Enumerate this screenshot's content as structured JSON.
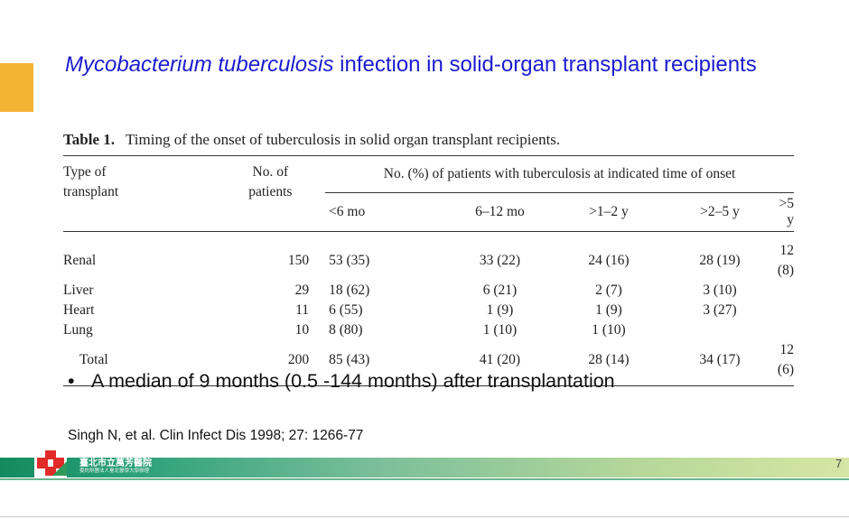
{
  "slide": {
    "title_italic": "Mycobacterium tuberculosis",
    "title_rest": " infection in solid-organ transplant recipients",
    "bullet": "A median of 9 months (0.5 -144 months) after transplantation",
    "reference": "Singh N, et al. Clin Infect Dis 1998; 27: 1266-77",
    "page_number": "7",
    "accent_color": "#f5b335",
    "title_color": "#1c1ccf"
  },
  "table": {
    "label": "Table 1.",
    "caption": "Timing of the onset of tuberculosis in solid organ transplant recipients.",
    "spanner": "No. (%) of patients with tuberculosis at indicated time of onset",
    "col_type_1": "Type of",
    "col_type_2": "transplant",
    "col_n_1": "No. of",
    "col_n_2": "patients",
    "onset_headers": [
      "<6 mo",
      "6–12 mo",
      ">1–2 y",
      ">2–5 y",
      ">5 y"
    ],
    "rows": [
      {
        "type": "Renal",
        "n": "150",
        "c1": "53 (35)",
        "c2": "33 (22)",
        "c3": "24 (16)",
        "c4": "28 (19)",
        "c5": "12 (8)"
      },
      {
        "type": "Liver",
        "n": "29",
        "c1": "18 (62)",
        "c2": "6 (21)",
        "c3": "2 (7)",
        "c4": "3 (10)",
        "c5": ""
      },
      {
        "type": "Heart",
        "n": "11",
        "c1": "6 (55)",
        "c2": "1 (9)",
        "c3": "1 (9)",
        "c4": "3 (27)",
        "c5": ""
      },
      {
        "type": "Lung",
        "n": "10",
        "c1": "8 (80)",
        "c2": "1 (10)",
        "c3": "1 (10)",
        "c4": "",
        "c5": ""
      },
      {
        "type": "Total",
        "n": "200",
        "c1": "85 (43)",
        "c2": "41 (20)",
        "c3": "28 (14)",
        "c4": "34 (17)",
        "c5": "12 (6)"
      }
    ]
  },
  "footer": {
    "hospital_name": "臺北市立萬芳醫院",
    "hospital_sub": "委託財團法人臺北醫學大學辦理"
  }
}
